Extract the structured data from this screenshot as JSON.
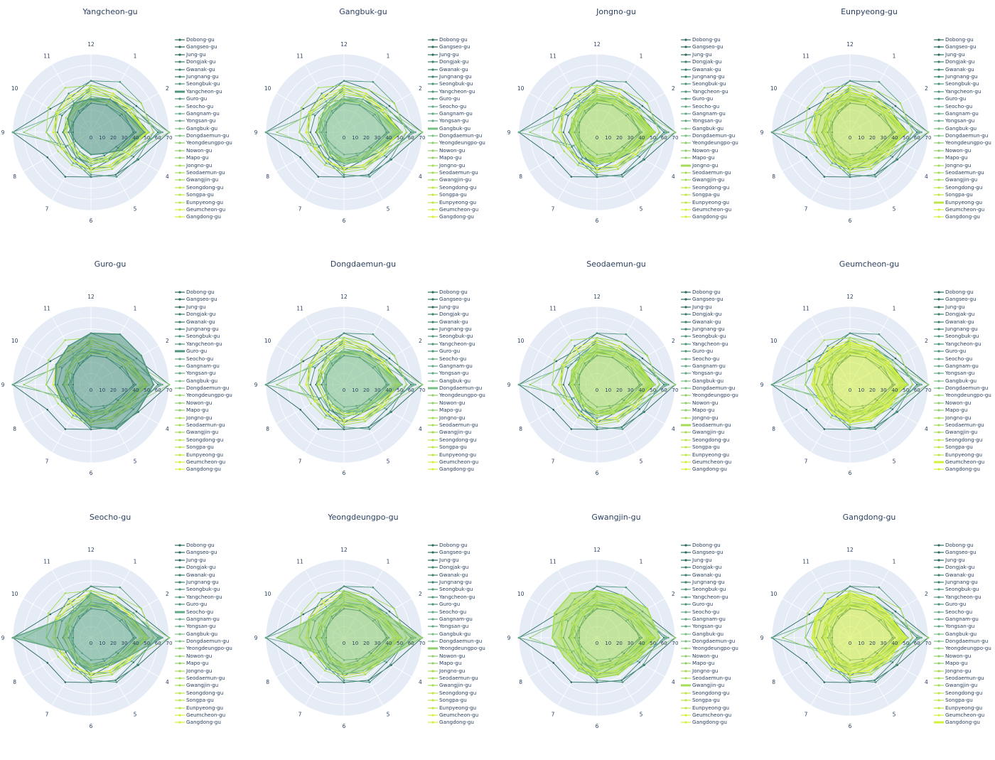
{
  "colors": {
    "polar_bg": "#E5ECF6",
    "grid": "#ffffff",
    "text": "#2a3f5f",
    "palette": [
      "#2a6b5e",
      "#3c806e",
      "#4f957c",
      "#63a986",
      "#7abf84",
      "#8fce6c",
      "#a4dc55",
      "#bde646",
      "#d4f03a"
    ]
  },
  "legend_labels": [
    "Dobong-gu",
    "Gangseo-gu",
    "Jung-gu",
    "Dongjak-gu",
    "Gwanak-gu",
    "Jungnang-gu",
    "Seongbuk-gu",
    "Yangcheon-gu",
    "Guro-gu",
    "Seocho-gu",
    "Gangnam-gu",
    "Yongsan-gu",
    "Gangbuk-gu",
    "Dongdaemun-gu",
    "Yeongdeungpo-gu",
    "Nowon-gu",
    "Mapo-gu",
    "Jongno-gu",
    "Seodaemun-gu",
    "Gwangjin-gu",
    "Seongdong-gu",
    "Songpa-gu",
    "Eunpyeong-gu",
    "Geumcheon-gu",
    "Gangdong-gu"
  ],
  "chart_data": [
    {
      "type": "radar",
      "title": "Yangcheon-gu",
      "highlight": "Yangcheon-gu"
    },
    {
      "type": "radar",
      "title": "Gangbuk-gu",
      "highlight": "Gangbuk-gu"
    },
    {
      "type": "radar",
      "title": "Jongno-gu",
      "highlight": "Jongno-gu"
    },
    {
      "type": "radar",
      "title": "Eunpyeong-gu",
      "highlight": "Eunpyeong-gu"
    },
    {
      "type": "radar",
      "title": "Guro-gu",
      "highlight": "Guro-gu"
    },
    {
      "type": "radar",
      "title": "Dongdaemun-gu",
      "highlight": "Dongdaemun-gu"
    },
    {
      "type": "radar",
      "title": "Seodaemun-gu",
      "highlight": "Seodaemun-gu"
    },
    {
      "type": "radar",
      "title": "Geumcheon-gu",
      "highlight": "Geumcheon-gu"
    },
    {
      "type": "radar",
      "title": "Seocho-gu",
      "highlight": "Seocho-gu"
    },
    {
      "type": "radar",
      "title": "Yeongdeungpo-gu",
      "highlight": "Yeongdeungpo-gu"
    },
    {
      "type": "radar",
      "title": "Gwangjin-gu",
      "highlight": "Gwangjin-gu"
    },
    {
      "type": "radar",
      "title": "Gangdong-gu",
      "highlight": "Gangdong-gu"
    }
  ],
  "shared_axes": {
    "angular_ticks": [
      "1",
      "2",
      "3",
      "4",
      "5",
      "6",
      "7",
      "8",
      "9",
      "10",
      "11",
      "12"
    ],
    "radial_ticks": [
      0,
      10,
      20,
      30,
      40,
      50,
      60,
      70
    ],
    "radial_range": [
      0,
      70
    ]
  },
  "series": [
    {
      "name": "Dobong-gu",
      "values": [
        30,
        34,
        38,
        28,
        30,
        34,
        24,
        18,
        16,
        18,
        20,
        29
      ]
    },
    {
      "name": "Gangseo-gu",
      "values": [
        44,
        47,
        70,
        49,
        44,
        40,
        46,
        45,
        70,
        42,
        36,
        46
      ]
    },
    {
      "name": "Jung-gu",
      "values": [
        34,
        40,
        52,
        36,
        30,
        28,
        26,
        22,
        25,
        24,
        26,
        30
      ]
    },
    {
      "name": "Dongjak-gu",
      "values": [
        28,
        30,
        40,
        30,
        26,
        26,
        20,
        18,
        18,
        18,
        20,
        26
      ]
    },
    {
      "name": "Gwanak-gu",
      "values": [
        38,
        44,
        60,
        44,
        44,
        40,
        30,
        26,
        30,
        30,
        30,
        38
      ]
    },
    {
      "name": "Jungnang-gu",
      "values": [
        28,
        32,
        40,
        26,
        24,
        24,
        20,
        18,
        20,
        18,
        22,
        26
      ]
    },
    {
      "name": "Seongbuk-gu",
      "values": [
        34,
        38,
        50,
        38,
        36,
        32,
        26,
        22,
        24,
        22,
        24,
        32
      ]
    },
    {
      "name": "Yangcheon-gu",
      "values": [
        34,
        36,
        48,
        32,
        22,
        20,
        16,
        16,
        18,
        24,
        30,
        30
      ]
    },
    {
      "name": "Guro-gu",
      "values": [
        52,
        52,
        56,
        48,
        46,
        38,
        28,
        30,
        32,
        36,
        40,
        46
      ]
    },
    {
      "name": "Seocho-gu",
      "values": [
        36,
        38,
        64,
        36,
        28,
        30,
        26,
        24,
        70,
        32,
        28,
        40
      ]
    },
    {
      "name": "Gangnam-gu",
      "values": [
        40,
        44,
        62,
        42,
        36,
        34,
        32,
        30,
        40,
        36,
        32,
        40
      ]
    },
    {
      "name": "Yongsan-gu",
      "values": [
        30,
        34,
        46,
        32,
        28,
        26,
        22,
        20,
        22,
        22,
        24,
        30
      ]
    },
    {
      "name": "Gangbuk-gu",
      "values": [
        32,
        36,
        50,
        32,
        30,
        28,
        22,
        20,
        22,
        24,
        26,
        30
      ]
    },
    {
      "name": "Dongdaemun-gu",
      "values": [
        34,
        36,
        52,
        32,
        28,
        24,
        20,
        18,
        18,
        20,
        24,
        30
      ]
    },
    {
      "name": "Yeongdeungpo-gu",
      "values": [
        40,
        42,
        70,
        40,
        34,
        32,
        30,
        28,
        60,
        34,
        30,
        42
      ]
    },
    {
      "name": "Nowon-gu",
      "values": [
        30,
        34,
        46,
        30,
        28,
        26,
        22,
        20,
        22,
        22,
        24,
        28
      ]
    },
    {
      "name": "Mapo-gu",
      "values": [
        32,
        36,
        48,
        34,
        30,
        28,
        24,
        22,
        24,
        24,
        26,
        32
      ]
    },
    {
      "name": "Jongno-gu",
      "values": [
        36,
        38,
        52,
        34,
        30,
        28,
        24,
        22,
        24,
        24,
        28,
        34
      ]
    },
    {
      "name": "Seodaemun-gu",
      "values": [
        36,
        42,
        50,
        32,
        30,
        26,
        22,
        22,
        24,
        26,
        28,
        36
      ]
    },
    {
      "name": "Gwangjin-gu",
      "values": [
        44,
        52,
        56,
        40,
        38,
        36,
        34,
        34,
        40,
        44,
        46,
        42
      ]
    },
    {
      "name": "Seongdong-gu",
      "values": [
        32,
        36,
        46,
        30,
        26,
        24,
        22,
        20,
        22,
        24,
        26,
        30
      ]
    },
    {
      "name": "Songpa-gu",
      "values": [
        30,
        34,
        44,
        30,
        28,
        26,
        22,
        20,
        22,
        22,
        24,
        28
      ]
    },
    {
      "name": "Eunpyeong-gu",
      "values": [
        36,
        38,
        50,
        36,
        34,
        32,
        30,
        28,
        32,
        34,
        34,
        36
      ]
    },
    {
      "name": "Geumcheon-gu",
      "values": [
        38,
        40,
        48,
        40,
        36,
        34,
        30,
        30,
        34,
        34,
        36,
        38
      ]
    },
    {
      "name": "Gangdong-gu",
      "values": [
        40,
        40,
        50,
        38,
        34,
        32,
        30,
        30,
        34,
        36,
        38,
        40
      ]
    }
  ]
}
